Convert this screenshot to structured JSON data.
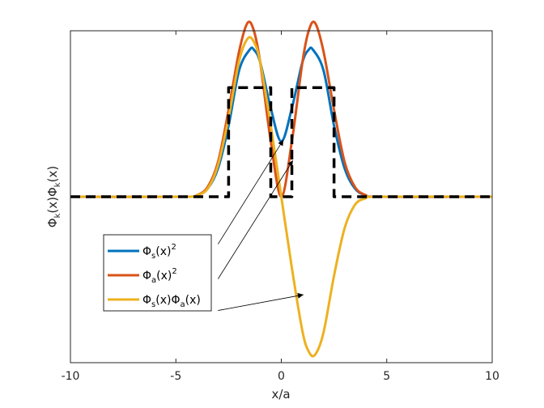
{
  "chart_data": {
    "type": "line",
    "xlabel": "x/a",
    "ylabel": {
      "base1": "Φ",
      "sub1": "k",
      "mid": "(x)Φ",
      "sub2": "k",
      "end": "(x)"
    },
    "xlim": [
      -10,
      10
    ],
    "ylim": [
      -1.05,
      1.05
    ],
    "x_ticks": [
      -10,
      -5,
      0,
      5,
      10
    ],
    "grid": false,
    "legend_placement": "lower-left",
    "series": [
      {
        "name": "Φ_s(x)^2",
        "legend": {
          "base": "Φ",
          "sub": "s",
          "rest": "(x)",
          "sup": "2"
        },
        "color": "#0072BD",
        "x": [
          -4.5,
          -4.0,
          -3.5,
          -3.0,
          -2.5,
          -2.0,
          -1.5,
          -1.3,
          -1.0,
          -0.5,
          0.0,
          0.5,
          1.0,
          1.3,
          1.5,
          2.0,
          2.5,
          3.0,
          3.5,
          4.0,
          4.5
        ],
        "y": [
          0.0,
          0.01,
          0.05,
          0.18,
          0.45,
          0.8,
          0.93,
          0.93,
          0.85,
          0.56,
          0.35,
          0.56,
          0.85,
          0.93,
          0.93,
          0.8,
          0.45,
          0.18,
          0.05,
          0.01,
          0.0
        ]
      },
      {
        "name": "Φ_a(x)^2",
        "legend": {
          "base": "Φ",
          "sub": "a",
          "rest": "(x)",
          "sup": "2"
        },
        "color": "#D95319",
        "x": [
          -4.5,
          -4.0,
          -3.5,
          -3.0,
          -2.5,
          -2.0,
          -1.6,
          -1.3,
          -1.0,
          -0.5,
          0.0,
          0.5,
          1.0,
          1.3,
          1.6,
          2.0,
          2.5,
          3.0,
          3.5,
          4.0,
          4.5
        ],
        "y": [
          0.0,
          0.01,
          0.06,
          0.22,
          0.55,
          0.92,
          1.1,
          1.05,
          0.85,
          0.35,
          0.0,
          0.35,
          0.85,
          1.05,
          1.1,
          0.92,
          0.55,
          0.22,
          0.06,
          0.01,
          0.0
        ]
      },
      {
        "name": "Φ_s(x)Φ_a(x)",
        "legend": {
          "base": "Φ",
          "sub": "s",
          "rest": "(x)Φ",
          "sub2": "a",
          "rest2": "(x)"
        },
        "color": "#EDB120",
        "x": [
          -4.5,
          -4.0,
          -3.5,
          -3.0,
          -2.5,
          -2.0,
          -1.6,
          -1.3,
          -1.0,
          -0.5,
          0.0,
          0.5,
          1.0,
          1.3,
          1.6,
          2.0,
          2.5,
          3.0,
          3.5,
          4.0,
          4.5
        ],
        "y": [
          0.0,
          0.01,
          0.05,
          0.2,
          0.5,
          0.86,
          1.0,
          0.98,
          0.85,
          0.45,
          0.0,
          -0.45,
          -0.85,
          -0.98,
          -1.0,
          -0.86,
          -0.5,
          -0.2,
          -0.05,
          -0.01,
          0.0
        ]
      },
      {
        "name": "potential",
        "color": "#000000",
        "style": "dashed",
        "x": [
          -10,
          -2.5,
          -2.5,
          -0.5,
          -0.5,
          0.5,
          0.5,
          2.5,
          2.5,
          10
        ],
        "y": [
          0,
          0,
          0.69,
          0.69,
          0,
          0,
          0.69,
          0.69,
          0,
          0
        ]
      }
    ],
    "annotation_arrows": [
      {
        "from": [
          -3.0,
          -0.3
        ],
        "to": [
          0.1,
          0.36
        ]
      },
      {
        "from": [
          -3.0,
          -0.52
        ],
        "to": [
          0.55,
          0.23
        ]
      },
      {
        "from": [
          -3.0,
          -0.72
        ],
        "to": [
          1.05,
          -0.62
        ]
      }
    ]
  }
}
